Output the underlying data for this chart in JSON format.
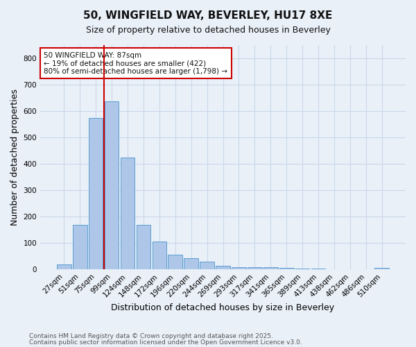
{
  "title1": "50, WINGFIELD WAY, BEVERLEY, HU17 8XE",
  "title2": "Size of property relative to detached houses in Beverley",
  "xlabel": "Distribution of detached houses by size in Beverley",
  "ylabel": "Number of detached properties",
  "categories": [
    "27sqm",
    "51sqm",
    "75sqm",
    "99sqm",
    "124sqm",
    "148sqm",
    "172sqm",
    "196sqm",
    "220sqm",
    "244sqm",
    "269sqm",
    "293sqm",
    "317sqm",
    "341sqm",
    "365sqm",
    "389sqm",
    "413sqm",
    "438sqm",
    "462sqm",
    "486sqm",
    "510sqm"
  ],
  "values": [
    18,
    168,
    575,
    637,
    425,
    170,
    105,
    57,
    42,
    30,
    15,
    10,
    9,
    8,
    6,
    4,
    3,
    1,
    1,
    0,
    6
  ],
  "bar_color": "#aec6e8",
  "bar_edge_color": "#5a9fd4",
  "grid_color": "#c8d8e8",
  "background_color": "#eaf0f8",
  "vline_color": "#cc0000",
  "annotation_line1": "50 WINGFIELD WAY: 87sqm",
  "annotation_line2": "← 19% of detached houses are smaller (422)",
  "annotation_line3": "80% of semi-detached houses are larger (1,798) →",
  "annotation_box_color": "#ffffff",
  "annotation_box_edge": "#cc0000",
  "ylim": [
    0,
    850
  ],
  "yticks": [
    0,
    100,
    200,
    300,
    400,
    500,
    600,
    700,
    800
  ],
  "footnote1": "Contains HM Land Registry data © Crown copyright and database right 2025.",
  "footnote2": "Contains public sector information licensed under the Open Government Licence v3.0."
}
